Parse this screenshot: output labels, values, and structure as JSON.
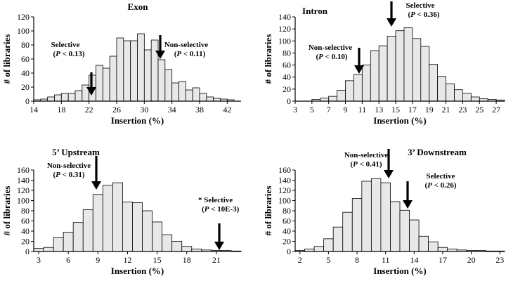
{
  "chart_data": [
    {
      "type": "bar",
      "title": "Exon",
      "xlabel": "Insertion (%)",
      "ylabel": "# of libraries",
      "xlim": [
        14,
        44
      ],
      "ylim": [
        0,
        120
      ],
      "bin_start": 14,
      "bin_width": 1,
      "xticks": [
        14,
        18,
        22,
        26,
        30,
        34,
        38,
        42
      ],
      "yticks": [
        0,
        20,
        40,
        60,
        80,
        100,
        120
      ],
      "values": [
        2,
        3,
        6,
        9,
        11,
        11,
        15,
        23,
        37,
        51,
        47,
        64,
        90,
        86,
        86,
        96,
        73,
        87,
        59,
        45,
        26,
        28,
        16,
        19,
        11,
        6,
        4,
        3,
        2,
        0
      ],
      "annotations": [
        {
          "id": "sel",
          "label": "Selective",
          "p_label": "(P < 0.13)",
          "p_letter": "P",
          "p_rest": " < 0.13)",
          "x": 22
        },
        {
          "id": "nonsel",
          "label": "Non-selective",
          "p_label": "(P < 0.11)",
          "p_letter": "P",
          "p_rest": " < 0.11)",
          "x": 32
        }
      ]
    },
    {
      "type": "bar",
      "title": "Intron",
      "xlabel": "Insertion (%)",
      "ylabel": "# of libraries",
      "xlim": [
        3,
        28
      ],
      "ylim": [
        0,
        140
      ],
      "bin_start": 3,
      "bin_width": 1,
      "xticks": [
        3,
        5,
        7,
        9,
        11,
        13,
        15,
        17,
        19,
        21,
        23,
        25,
        27
      ],
      "yticks": [
        0,
        20,
        40,
        60,
        80,
        100,
        120,
        140
      ],
      "values": [
        0,
        0,
        3,
        5,
        8,
        18,
        34,
        44,
        60,
        84,
        92,
        108,
        117,
        122,
        104,
        91,
        61,
        41,
        29,
        19,
        13,
        7,
        4,
        3,
        2
      ],
      "annotations": [
        {
          "id": "nonsel",
          "label": "Non-selective",
          "p_label": "(P < 0.10)",
          "p_letter": "P",
          "p_rest": " < 0.10)",
          "x": 10
        },
        {
          "id": "sel",
          "label": "Selective",
          "p_label": "(P < 0.36)",
          "p_letter": "P",
          "p_rest": " < 0.36)",
          "x": 14.5
        }
      ]
    },
    {
      "type": "bar",
      "title": "5’ Upstream",
      "xlabel": "Insertion (%)",
      "ylabel": "# of libraries",
      "xlim": [
        2.5,
        23.5
      ],
      "ylim": [
        0,
        160
      ],
      "bin_start": 2.5,
      "bin_width": 1,
      "xticks": [
        3,
        6,
        9,
        12,
        15,
        18,
        21
      ],
      "yticks": [
        0,
        20,
        40,
        60,
        80,
        100,
        120,
        140,
        160
      ],
      "values": [
        6,
        8,
        27,
        38,
        57,
        82,
        112,
        130,
        135,
        97,
        96,
        80,
        58,
        33,
        20,
        10,
        5,
        3,
        2,
        2,
        1
      ],
      "annotations": [
        {
          "id": "nonsel",
          "label": "Non-selective",
          "p_label": "(P < 0.31)",
          "p_letter": "P",
          "p_rest": " < 0.31)",
          "x": 9
        },
        {
          "id": "sel",
          "label": "* Selective",
          "p_label": "(P < 10E-3)",
          "p_letter": "P",
          "p_rest": " < 10E-3)",
          "x": 21
        }
      ]
    },
    {
      "type": "bar",
      "title": "3’ Downstream",
      "xlabel": "Insertion (%)",
      "ylabel": "# of libraries",
      "xlim": [
        1.5,
        23.5
      ],
      "ylim": [
        0,
        160
      ],
      "bin_start": 1.5,
      "bin_width": 1,
      "xticks": [
        2,
        5,
        8,
        11,
        14,
        17,
        20,
        23
      ],
      "yticks": [
        0,
        20,
        40,
        60,
        80,
        100,
        120,
        140,
        160
      ],
      "values": [
        2,
        5,
        10,
        25,
        48,
        77,
        104,
        138,
        143,
        135,
        98,
        81,
        62,
        30,
        19,
        8,
        5,
        3,
        2,
        2,
        1,
        1
      ],
      "annotations": [
        {
          "id": "nonsel",
          "label": "Non-selective",
          "p_label": "(P < 0.41)",
          "p_letter": "P",
          "p_rest": " < 0.41)",
          "x": 11
        },
        {
          "id": "sel",
          "label": "Selective",
          "p_label": "(P < 0.26)",
          "p_letter": "P",
          "p_rest": " < 0.26)",
          "x": 13
        }
      ]
    }
  ]
}
